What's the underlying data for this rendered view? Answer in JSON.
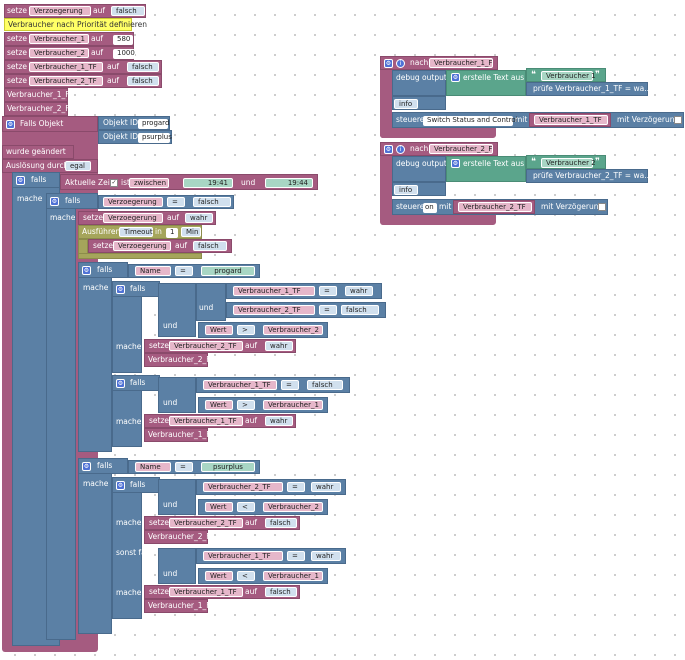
{
  "top": {
    "set": "setze",
    "to": "auf",
    "r1": {
      "var": "Verzoegerung",
      "val": "falsch"
    },
    "comment": "Verbraucher nach Priorität definieren",
    "r2": {
      "var": "Verbraucher_1",
      "val": "580"
    },
    "r3": {
      "var": "Verbraucher_2",
      "val": "1000"
    },
    "r4": {
      "var": "Verbraucher_1_TF",
      "val": "falsch"
    },
    "r5": {
      "var": "Verbraucher_2_TF",
      "val": "falsch"
    },
    "f1": "Verbraucher_1_F",
    "f2": "Verbraucher_2_F"
  },
  "trigger": {
    "label": "Falls Objekt",
    "oid": "Objekt ID",
    "id1": "progard",
    "id2": "psurplus",
    "changed": "wurde geändert",
    "by": "Auslösung durch",
    "by_val": "egal"
  },
  "logic": {
    "if": "falls",
    "do": "mache",
    "else_if": "sonst falls",
    "and": "und",
    "time": "Aktuelle Zeit",
    "is": "ist",
    "between": "zwischen",
    "t1": "19:41",
    "and_t": "und",
    "t2": "19:44",
    "eq": "=",
    "gt": ">",
    "lt": "<",
    "true": "wahr",
    "false": "falsch",
    "delay_var": "Verzoegerung",
    "exec": "Ausführen",
    "timeout": "Timeout",
    "in": "in",
    "n": "1",
    "unit": "Min",
    "name": "Name",
    "progard": "progard",
    "psurplus": "psurplus",
    "value": "Wert",
    "v1": "Verbraucher_1",
    "v2": "Verbraucher_2",
    "v1tf": "Verbraucher_1_TF",
    "v2tf": "Verbraucher_2_TF",
    "v1f": "Verbraucher_1_F",
    "v2f": "Verbraucher_2_F"
  },
  "fn": {
    "after": "nach",
    "debug": "debug output",
    "create_text": "erstelle Text aus",
    "info": "info",
    "control": "steuere",
    "switch_status": "Switch Status and Control",
    "with": "mit",
    "with_delay": "mit Verzögerung",
    "on": "on",
    "f1": {
      "name": "Verbraucher_1_F",
      "text": "Verbraucher 1",
      "check": "prüfe Verbraucher_1_TF = wa...",
      "tf": "Verbraucher_1_TF"
    },
    "f2": {
      "name": "Verbraucher_2_F",
      "text": "Verbraucher 2",
      "check": "prüfe Verbraucher_2_TF = wa...",
      "tf": "Verbraucher_2_TF"
    }
  }
}
